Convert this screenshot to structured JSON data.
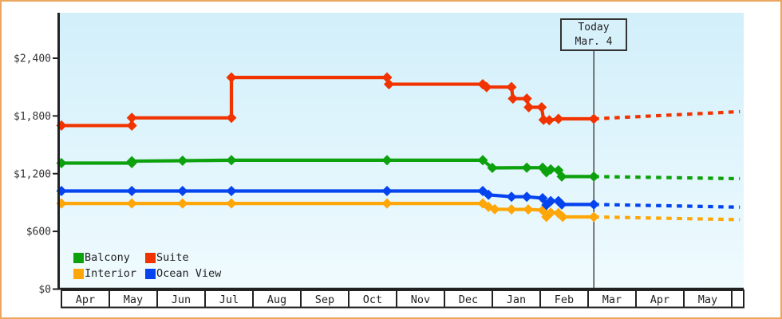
{
  "today": {
    "line1": "Today",
    "line2": "Mar. 4"
  },
  "legend": {
    "items": [
      {
        "label": "Balcony",
        "color": "#0da10d"
      },
      {
        "label": "Suite",
        "color": "#f13300"
      },
      {
        "label": "Interior",
        "color": "#ffa608"
      },
      {
        "label": "Ocean View",
        "color": "#0543ef"
      }
    ]
  },
  "chart_data": {
    "type": "line",
    "title": "",
    "xlabel": "",
    "ylabel": "",
    "grid": false,
    "legend_position": "inside-bottom-left",
    "x_months": [
      "Apr",
      "May",
      "Jun",
      "Jul",
      "Aug",
      "Sep",
      "Oct",
      "Nov",
      "Dec",
      "Jan",
      "Feb",
      "Mar",
      "Apr",
      "May"
    ],
    "y_ticks": [
      {
        "value": 0,
        "label": "$0"
      },
      {
        "value": 600,
        "label": "$600"
      },
      {
        "value": 1200,
        "label": "$1,200"
      },
      {
        "value": 1800,
        "label": "$1,800"
      },
      {
        "value": 2400,
        "label": "$2,400"
      }
    ],
    "ylim": [
      0,
      2870
    ],
    "today_month_index": 11.12,
    "series": [
      {
        "id": "interior",
        "name": "Interior",
        "color": "#ffa608",
        "points": [
          [
            0,
            890
          ],
          [
            1.47,
            890
          ],
          [
            2.53,
            890
          ],
          [
            3.55,
            890
          ],
          [
            6.8,
            890
          ],
          [
            8.8,
            890
          ],
          [
            8.92,
            855
          ],
          [
            9.05,
            830
          ],
          [
            9.4,
            828
          ],
          [
            9.75,
            828
          ],
          [
            10.05,
            820
          ],
          [
            10.13,
            750
          ],
          [
            10.22,
            795
          ],
          [
            10.38,
            790
          ],
          [
            10.47,
            750
          ],
          [
            11.12,
            750
          ]
        ],
        "forecast": [
          [
            11.12,
            750
          ],
          [
            14.17,
            722
          ]
        ]
      },
      {
        "id": "ocean-view",
        "name": "Ocean View",
        "color": "#0543ef",
        "points": [
          [
            0,
            1020
          ],
          [
            1.47,
            1020
          ],
          [
            2.53,
            1020
          ],
          [
            3.55,
            1020
          ],
          [
            6.8,
            1020
          ],
          [
            8.8,
            1020
          ],
          [
            8.92,
            980
          ],
          [
            9.4,
            960
          ],
          [
            9.72,
            960
          ],
          [
            10.05,
            945
          ],
          [
            10.13,
            875
          ],
          [
            10.22,
            915
          ],
          [
            10.38,
            915
          ],
          [
            10.45,
            880
          ],
          [
            11.12,
            880
          ]
        ],
        "forecast": [
          [
            11.12,
            880
          ],
          [
            14.17,
            852
          ]
        ]
      },
      {
        "id": "balcony",
        "name": "Balcony",
        "color": "#0da10d",
        "points": [
          [
            0,
            1310
          ],
          [
            1.47,
            1310
          ],
          [
            1.47,
            1330
          ],
          [
            2.53,
            1335
          ],
          [
            3.55,
            1340
          ],
          [
            6.8,
            1340
          ],
          [
            8.8,
            1340
          ],
          [
            9.0,
            1260
          ],
          [
            9.72,
            1262
          ],
          [
            10.05,
            1262
          ],
          [
            10.13,
            1215
          ],
          [
            10.22,
            1245
          ],
          [
            10.38,
            1235
          ],
          [
            10.45,
            1170
          ],
          [
            11.12,
            1170
          ]
        ],
        "forecast": [
          [
            11.12,
            1170
          ],
          [
            14.17,
            1148
          ]
        ]
      },
      {
        "id": "suite",
        "name": "Suite",
        "color": "#f13300",
        "points": [
          [
            0,
            1700
          ],
          [
            1.47,
            1700
          ],
          [
            1.47,
            1780
          ],
          [
            3.55,
            1780
          ],
          [
            3.55,
            2200
          ],
          [
            6.8,
            2200
          ],
          [
            6.84,
            2130
          ],
          [
            8.8,
            2130
          ],
          [
            8.88,
            2100
          ],
          [
            9.4,
            2100
          ],
          [
            9.43,
            1980
          ],
          [
            9.72,
            1980
          ],
          [
            9.76,
            1890
          ],
          [
            10.03,
            1890
          ],
          [
            10.07,
            1760
          ],
          [
            10.19,
            1755
          ],
          [
            10.38,
            1770
          ],
          [
            11.12,
            1770
          ]
        ],
        "forecast": [
          [
            11.12,
            1770
          ],
          [
            14.17,
            1845
          ]
        ]
      }
    ]
  }
}
